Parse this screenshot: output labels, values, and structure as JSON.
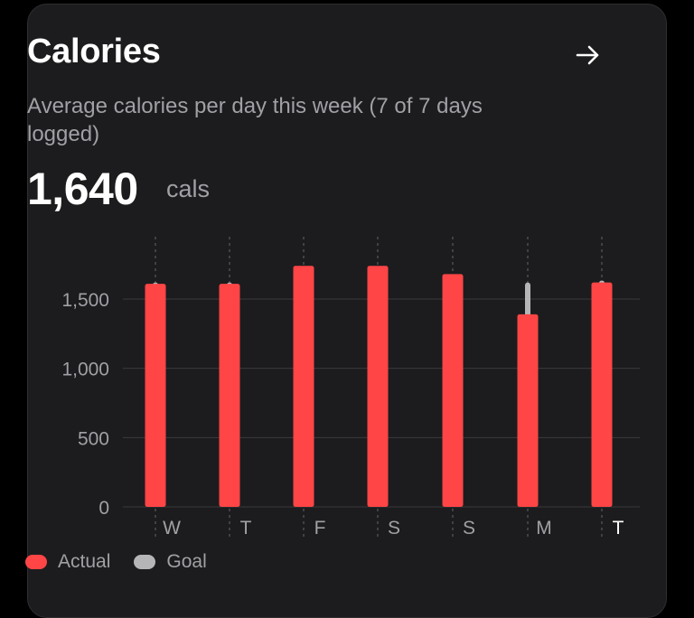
{
  "card": {
    "title": "Calories",
    "subtitle": "Average calories per day this week (7 of 7 days logged)",
    "value": "1,640",
    "unit": "cals"
  },
  "icons": {
    "navigate": "arrow-right-icon"
  },
  "colors": {
    "actual": "#ff4545",
    "goal": "#b5b5b8",
    "background": "#1c1c1e",
    "text_primary": "#ffffff",
    "text_secondary": "#a0a0a5",
    "grid": "#3a3a3c"
  },
  "legend": [
    {
      "label": "Actual",
      "color": "#ff4545"
    },
    {
      "label": "Goal",
      "color": "#b5b5b8"
    }
  ],
  "chart_data": {
    "type": "bar",
    "categories": [
      "W",
      "T",
      "F",
      "S",
      "S",
      "M",
      "T"
    ],
    "highlight_category_index": 6,
    "series": [
      {
        "name": "Actual",
        "values": [
          1610,
          1610,
          1740,
          1740,
          1680,
          1390,
          1620
        ]
      },
      {
        "name": "Goal",
        "values": [
          1620,
          1620,
          1620,
          1620,
          1620,
          1620,
          1620
        ]
      }
    ],
    "y_ticks": [
      0,
      500,
      1000,
      1500
    ],
    "y_tick_labels": [
      "0",
      "500",
      "1,000",
      "1,500"
    ],
    "ylim": [
      0,
      2000
    ],
    "grid": true,
    "legend_position": "bottom-left"
  }
}
